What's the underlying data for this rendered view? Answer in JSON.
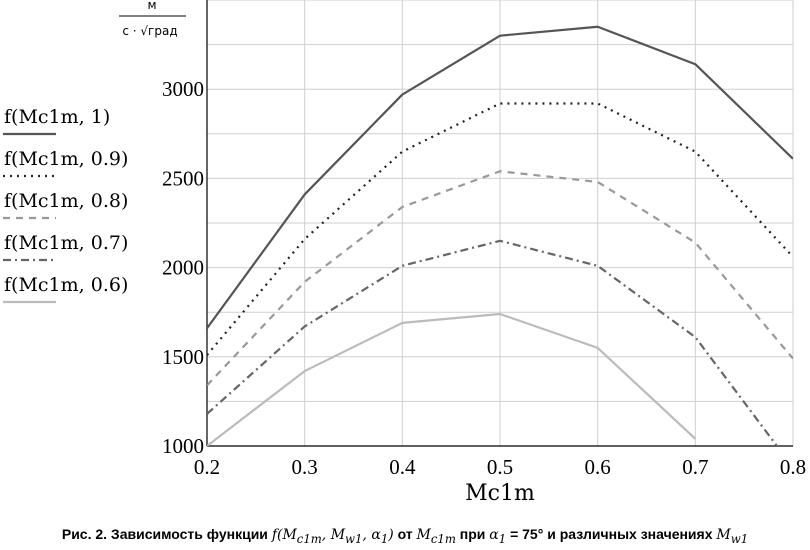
{
  "chart_data": {
    "type": "line",
    "xlabel": "Mc1m",
    "ylabel_num": "м",
    "ylabel_den": "с · √град",
    "xlim": [
      0.2,
      0.8
    ],
    "ylim": [
      1000,
      3500
    ],
    "xticks": [
      0.2,
      0.3,
      0.4,
      0.5,
      0.6,
      0.7,
      0.8
    ],
    "xtick_labels": [
      "0.2",
      "0.3",
      "0.4",
      "0.5",
      "0.6",
      "0.7",
      "0.8"
    ],
    "yticks": [
      1000,
      1500,
      2000,
      2500,
      3000
    ],
    "ytick_labels": [
      "1000",
      "1500",
      "2000",
      "2500",
      "3000"
    ],
    "grid": true,
    "legend_position": "left",
    "x": [
      0.2,
      0.3,
      0.4,
      0.5,
      0.6,
      0.7,
      0.8
    ],
    "series": [
      {
        "name": "f(Mc1m, 1)",
        "color": "#555555",
        "dash": "solid",
        "values": [
          1660,
          2410,
          2970,
          3300,
          3350,
          3140,
          2610
        ]
      },
      {
        "name": "f(Mc1m, 0.9)",
        "color": "#222222",
        "dash": "dot",
        "values": [
          1510,
          2160,
          2650,
          2920,
          2920,
          2650,
          2060
        ]
      },
      {
        "name": "f(Mc1m, 0.8)",
        "color": "#999999",
        "dash": "dash",
        "values": [
          1340,
          1920,
          2340,
          2540,
          2480,
          2140,
          1490
        ]
      },
      {
        "name": "f(Mc1m, 0.7)",
        "color": "#666666",
        "dash": "dashdot",
        "values": [
          1180,
          1670,
          2010,
          2150,
          2010,
          1610,
          880
        ]
      },
      {
        "name": "f(Mc1m, 0.6)",
        "color": "#bbbbbb",
        "dash": "solid",
        "values": [
          1000,
          1420,
          1690,
          1740,
          1550,
          1040,
          null
        ]
      }
    ]
  },
  "caption": {
    "prefix": "Рис. 2. Зависимость функции ",
    "func": "f(M",
    "func_sub1": "c1m",
    "func_mid": ", M",
    "func_sub2": "w1",
    "func_end": ", α",
    "func_sub3": "1",
    "func_close": ")",
    "from": " от ",
    "m": "M",
    "m_sub": "c1m",
    "at": " при ",
    "alpha": "α",
    "alpha_sub": "1",
    "alpha_val": " = 75°",
    "rest": " и различных значениях ",
    "mw": "M",
    "mw_sub": "w1"
  }
}
